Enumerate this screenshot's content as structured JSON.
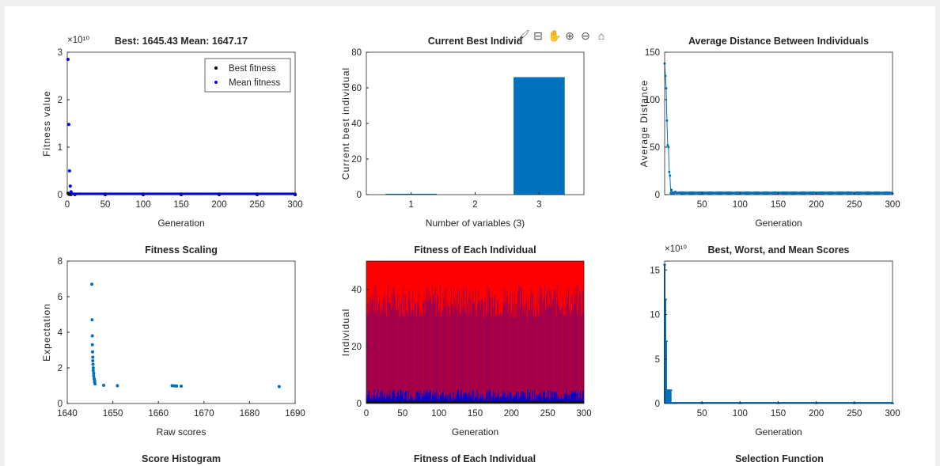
{
  "figure": {
    "background": "#f0f0f0",
    "frame_background": "#ffffff"
  },
  "toolbar": {
    "icons": [
      {
        "name": "brush-icon",
        "glyph": "🖌"
      },
      {
        "name": "data-tips-icon",
        "glyph": "⊟"
      },
      {
        "name": "pan-icon",
        "glyph": "✋"
      },
      {
        "name": "zoom-in-icon",
        "glyph": "⊕"
      },
      {
        "name": "zoom-out-icon",
        "glyph": "⊖"
      },
      {
        "name": "home-icon",
        "glyph": "⌂"
      }
    ]
  },
  "chart_data": [
    {
      "id": "fitness",
      "type": "scatter",
      "title": "Best: 1645.43 Mean: 1647.17",
      "xlabel": "Generation",
      "ylabel": "Fitness value",
      "exponent_label": "×10¹⁰",
      "xlim": [
        0,
        300
      ],
      "ylim": [
        0,
        3
      ],
      "xticks": [
        0,
        50,
        100,
        150,
        200,
        250,
        300
      ],
      "yticks": [
        0,
        1,
        2,
        3
      ],
      "legend": {
        "position": "top-right",
        "entries": [
          "Best fitness",
          "Mean fitness"
        ]
      },
      "series": [
        {
          "name": "Best fitness",
          "color": "#000000",
          "x": [
            1,
            2,
            3,
            5,
            10,
            50,
            100,
            150,
            200,
            250,
            300
          ],
          "y": [
            0.03,
            0.01,
            0.005,
            0.002,
            0,
            0,
            0,
            0,
            0,
            0,
            0
          ]
        },
        {
          "name": "Mean fitness",
          "color": "#0000ff",
          "x": [
            1,
            2,
            3,
            4,
            5,
            6,
            10,
            50,
            100,
            150,
            200,
            250,
            300
          ],
          "y": [
            2.85,
            1.48,
            0.5,
            0.18,
            0.06,
            0.02,
            0.01,
            0,
            0,
            0,
            0,
            0,
            0
          ]
        }
      ]
    },
    {
      "id": "current-best",
      "type": "bar",
      "title": "Current Best Individ",
      "xlabel": "Number of variables (3)",
      "ylabel": "Current best individual",
      "categories": [
        "1",
        "2",
        "3"
      ],
      "values": [
        0.5,
        0,
        66
      ],
      "ylim": [
        0,
        80
      ],
      "yticks": [
        0,
        20,
        40,
        60,
        80
      ],
      "color": "#0072bd"
    },
    {
      "id": "avg-distance",
      "type": "line",
      "title": "Average Distance Between Individuals",
      "xlabel": "Generation",
      "ylabel": "Average Distance",
      "xlim": [
        1,
        300
      ],
      "ylim": [
        0,
        150
      ],
      "xticks": [
        50,
        100,
        150,
        200,
        250,
        300
      ],
      "yticks": [
        0,
        50,
        100,
        150
      ],
      "color": "#0072bd",
      "x": [
        1,
        2,
        3,
        4,
        5,
        6,
        7,
        8,
        10,
        15,
        20,
        50,
        100,
        150,
        200,
        250,
        300
      ],
      "y": [
        138,
        125,
        112,
        78,
        52,
        50,
        24,
        20,
        5,
        3,
        2,
        1.5,
        1.5,
        1.2,
        1,
        1,
        1
      ]
    },
    {
      "id": "fitness-scaling",
      "type": "scatter",
      "title": "Fitness Scaling",
      "xlabel": "Raw scores",
      "ylabel": "Expectation",
      "xlim": [
        1640,
        1690
      ],
      "ylim": [
        0,
        8
      ],
      "xticks": [
        1640,
        1650,
        1660,
        1670,
        1680,
        1690
      ],
      "yticks": [
        0,
        2,
        4,
        6,
        8
      ],
      "color": "#0072bd",
      "x": [
        1645.4,
        1645.45,
        1645.5,
        1645.5,
        1645.55,
        1645.6,
        1645.6,
        1645.65,
        1645.7,
        1645.7,
        1645.8,
        1645.8,
        1645.9,
        1646.0,
        1646.0,
        1646.1,
        1648.0,
        1651.0,
        1663.0,
        1663.5,
        1664.0,
        1665.0,
        1686.5
      ],
      "y": [
        6.7,
        4.7,
        3.8,
        3.3,
        2.9,
        2.6,
        2.4,
        2.2,
        2.0,
        1.85,
        1.7,
        1.55,
        1.4,
        1.3,
        1.2,
        1.1,
        1.02,
        1.0,
        1.0,
        0.99,
        0.98,
        0.97,
        0.95
      ]
    },
    {
      "id": "fitness-each",
      "type": "heatmap",
      "title": "Fitness of Each Individual",
      "xlabel": "Generation",
      "ylabel": "Individual",
      "xlim": [
        0,
        300
      ],
      "ylim": [
        0,
        50
      ],
      "xticks": [
        0,
        50,
        100,
        150,
        200,
        250,
        300
      ],
      "yticks": [
        0,
        20,
        40
      ],
      "colors": {
        "low": "#0000cc",
        "high": "#ff0000",
        "best": "#000000"
      }
    },
    {
      "id": "scores",
      "type": "bar",
      "title": "Best, Worst, and Mean Scores",
      "xlabel": "Generation",
      "ylabel": "",
      "exponent_label": "×10¹⁰",
      "xlim": [
        1,
        300
      ],
      "ylim": [
        0,
        16
      ],
      "xticks": [
        50,
        100,
        150,
        200,
        250,
        300
      ],
      "yticks": [
        0,
        5,
        10,
        15
      ],
      "color": "#0072bd",
      "x": [
        1,
        2,
        3,
        4,
        5,
        6,
        7,
        8,
        9,
        10,
        15,
        50,
        100,
        150,
        200,
        250,
        300
      ],
      "worst": [
        15.6,
        11.7,
        7.0,
        1.5,
        1.5,
        1.5,
        1.5,
        1.5,
        1.5,
        0.02,
        0.01,
        0,
        0,
        0,
        0,
        0,
        0
      ],
      "best": [
        0,
        0,
        0,
        0,
        0,
        0,
        0,
        0,
        0,
        0,
        0,
        0,
        0,
        0,
        0,
        0,
        0
      ]
    }
  ],
  "bottom_titles": [
    {
      "id": "score-histogram",
      "title": "Score Histogram"
    },
    {
      "id": "fitness-each-title",
      "title": "Fitness of Each Individual"
    },
    {
      "id": "selection-function",
      "title": "Selection Function"
    }
  ]
}
